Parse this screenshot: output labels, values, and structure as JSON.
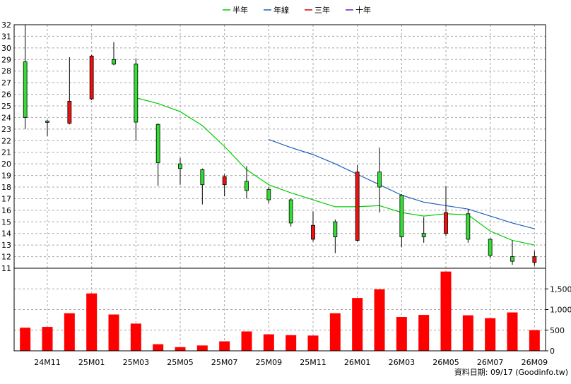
{
  "chart_data": {
    "type": "candlestick+bar",
    "legend": [
      {
        "name": "半年",
        "color": "#00cc00"
      },
      {
        "name": "年線",
        "color": "#1f5fbf"
      },
      {
        "name": "三年",
        "color": "#dd0000"
      },
      {
        "name": "十年",
        "color": "#6a1fc0"
      }
    ],
    "legend_position": "top-center",
    "grid": true,
    "x_tick_labels": [
      "24M11",
      "25M01",
      "25M03",
      "25M05",
      "25M07",
      "25M09",
      "25M11",
      "26M01",
      "26M03",
      "26M05",
      "26M07",
      "26M09"
    ],
    "price_axis": {
      "min": 11,
      "max": 32,
      "step": 1,
      "side": "left"
    },
    "volume_axis": {
      "min": 0,
      "max": 2000,
      "ticks": [
        0,
        500,
        1000,
        1500
      ],
      "tick_labels": [
        "0",
        "500",
        "1,000",
        "1,500"
      ],
      "side": "right"
    },
    "candles": [
      {
        "m": "24M10",
        "o": 24.0,
        "c": 28.8,
        "h": 32.0,
        "l": 23.0
      },
      {
        "m": "24M11",
        "o": 23.6,
        "c": 23.7,
        "h": 23.8,
        "l": 22.4
      },
      {
        "m": "24M12",
        "o": 25.4,
        "c": 23.5,
        "h": 29.2,
        "l": 23.4
      },
      {
        "m": "25M01",
        "o": 29.3,
        "c": 25.6,
        "h": 29.4,
        "l": 25.5
      },
      {
        "m": "25M02",
        "o": 28.6,
        "c": 29.0,
        "h": 30.5,
        "l": 28.5
      },
      {
        "m": "25M03",
        "o": 23.6,
        "c": 28.6,
        "h": 29.1,
        "l": 22.0
      },
      {
        "m": "25M04",
        "o": 20.1,
        "c": 23.4,
        "h": 23.5,
        "l": 18.1
      },
      {
        "m": "25M05",
        "o": 19.6,
        "c": 20.0,
        "h": 20.5,
        "l": 18.2
      },
      {
        "m": "25M06",
        "o": 18.2,
        "c": 19.5,
        "h": 19.6,
        "l": 16.5
      },
      {
        "m": "25M07",
        "o": 18.9,
        "c": 18.2,
        "h": 19.1,
        "l": 17.2
      },
      {
        "m": "25M08",
        "o": 17.7,
        "c": 18.5,
        "h": 19.8,
        "l": 17.0
      },
      {
        "m": "25M09",
        "o": 16.9,
        "c": 17.8,
        "h": 18.0,
        "l": 16.6
      },
      {
        "m": "25M10",
        "o": 14.9,
        "c": 16.9,
        "h": 17.0,
        "l": 14.6
      },
      {
        "m": "25M11",
        "o": 14.7,
        "c": 13.5,
        "h": 15.9,
        "l": 13.3
      },
      {
        "m": "25M12",
        "o": 13.7,
        "c": 15.0,
        "h": 15.2,
        "l": 12.3
      },
      {
        "m": "26M01",
        "o": 19.3,
        "c": 13.4,
        "h": 19.9,
        "l": 13.3
      },
      {
        "m": "26M02",
        "o": 18.0,
        "c": 19.3,
        "h": 21.4,
        "l": 15.8
      },
      {
        "m": "26M03",
        "o": 13.7,
        "c": 17.3,
        "h": 17.4,
        "l": 12.8
      },
      {
        "m": "26M04",
        "o": 13.7,
        "c": 14.0,
        "h": 15.4,
        "l": 13.2
      },
      {
        "m": "26M05",
        "o": 15.8,
        "c": 14.0,
        "h": 18.1,
        "l": 13.8
      },
      {
        "m": "26M06",
        "o": 13.5,
        "c": 15.7,
        "h": 16.1,
        "l": 13.2
      },
      {
        "m": "26M07",
        "o": 12.1,
        "c": 13.5,
        "h": 13.6,
        "l": 11.9
      },
      {
        "m": "26M08",
        "o": 11.6,
        "c": 12.0,
        "h": 13.4,
        "l": 11.3
      },
      {
        "m": "26M09",
        "o": 12.0,
        "c": 11.5,
        "h": 12.5,
        "l": 11.2
      }
    ],
    "volume": [
      560,
      580,
      910,
      1390,
      880,
      660,
      160,
      90,
      130,
      230,
      470,
      400,
      380,
      370,
      910,
      1280,
      1490,
      820,
      870,
      1920,
      860,
      790,
      930,
      500
    ],
    "ma_half_year": [
      null,
      null,
      null,
      null,
      null,
      25.7,
      25.2,
      24.5,
      23.3,
      21.5,
      19.5,
      18.2,
      17.5,
      16.9,
      16.3,
      16.3,
      16.4,
      15.8,
      15.5,
      15.7,
      15.6,
      14.2,
      13.4,
      13.0
    ],
    "ma_year": [
      null,
      null,
      null,
      null,
      null,
      null,
      null,
      null,
      null,
      null,
      null,
      22.1,
      21.4,
      20.8,
      20.0,
      19.1,
      18.2,
      17.3,
      16.7,
      16.4,
      16.1,
      15.5,
      14.9,
      14.4
    ]
  },
  "footer": {
    "source_text": "資料日期: 09/17 (Goodinfo.tw)"
  }
}
